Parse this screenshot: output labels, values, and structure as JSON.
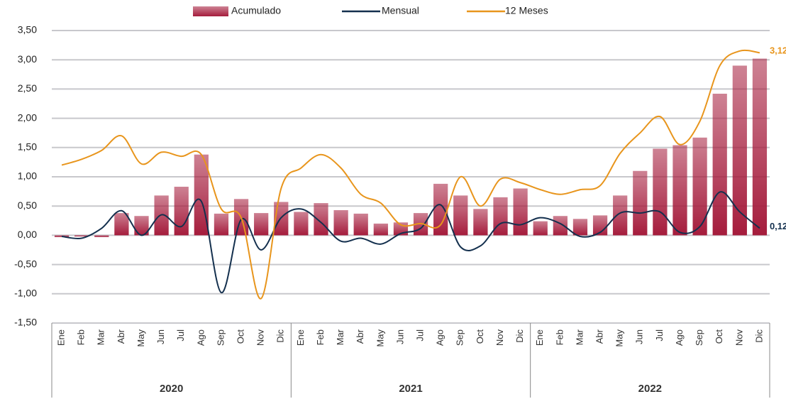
{
  "chart_data": {
    "type": "bar-line",
    "categories": [
      "Ene",
      "Feb",
      "Mar",
      "Abr",
      "May",
      "Jun",
      "Jul",
      "Ago",
      "Sep",
      "Oct",
      "Nov",
      "Dic",
      "Ene",
      "Feb",
      "Mar",
      "Abr",
      "May",
      "Jun",
      "Jul",
      "Ago",
      "Sep",
      "Oct",
      "Nov",
      "Dic",
      "Ene",
      "Feb",
      "Mar",
      "Abr",
      "May",
      "Jun",
      "Jul",
      "Ago",
      "Sep",
      "Oct",
      "Nov",
      "Dic"
    ],
    "groups": [
      {
        "label": "2020",
        "size": 12
      },
      {
        "label": "2021",
        "size": 12
      },
      {
        "label": "2022",
        "size": 12
      }
    ],
    "series": [
      {
        "name": "Acumulado",
        "type": "bar",
        "color": "#a51c3c",
        "values": [
          -0.03,
          -0.02,
          -0.03,
          0.38,
          0.33,
          0.68,
          0.83,
          1.38,
          0.37,
          0.62,
          0.38,
          0.57,
          0.4,
          0.55,
          0.43,
          0.37,
          0.2,
          0.22,
          0.38,
          0.88,
          0.68,
          0.45,
          0.65,
          0.8,
          0.24,
          0.33,
          0.28,
          0.34,
          0.68,
          1.1,
          1.48,
          1.54,
          1.67,
          2.42,
          2.9,
          3.02
        ]
      },
      {
        "name": "Mensual",
        "type": "line",
        "color": "#14304e",
        "values": [
          -0.02,
          -0.05,
          0.12,
          0.42,
          0.0,
          0.35,
          0.15,
          0.58,
          -0.98,
          0.27,
          -0.25,
          0.3,
          0.45,
          0.22,
          -0.1,
          -0.05,
          -0.15,
          0.03,
          0.12,
          0.52,
          -0.2,
          -0.18,
          0.2,
          0.18,
          0.3,
          0.2,
          -0.02,
          0.05,
          0.38,
          0.38,
          0.4,
          0.05,
          0.15,
          0.74,
          0.4,
          0.12
        ],
        "value_labels": [
          null,
          null,
          null,
          null,
          null,
          null,
          null,
          null,
          null,
          null,
          null,
          null,
          null,
          null,
          null,
          null,
          null,
          null,
          null,
          null,
          null,
          null,
          null,
          null,
          null,
          null,
          null,
          null,
          null,
          null,
          null,
          null,
          null,
          null,
          null,
          "0,12"
        ]
      },
      {
        "name": "12 Meses",
        "type": "line",
        "color": "#e8951c",
        "values": [
          1.2,
          1.3,
          1.45,
          1.7,
          1.22,
          1.42,
          1.35,
          1.38,
          0.45,
          0.3,
          -1.08,
          0.8,
          1.15,
          1.38,
          1.15,
          0.7,
          0.55,
          0.18,
          0.2,
          0.18,
          1.0,
          0.5,
          0.96,
          0.9,
          0.78,
          0.7,
          0.78,
          0.85,
          1.4,
          1.75,
          2.03,
          1.55,
          1.95,
          2.9,
          3.15,
          3.12
        ],
        "value_labels": [
          null,
          null,
          null,
          null,
          null,
          null,
          null,
          null,
          null,
          null,
          null,
          null,
          null,
          null,
          null,
          null,
          null,
          null,
          null,
          null,
          null,
          null,
          null,
          null,
          null,
          null,
          null,
          null,
          null,
          null,
          null,
          null,
          null,
          null,
          null,
          "3,12"
        ]
      }
    ],
    "ylim": [
      -1.5,
      3.5
    ],
    "yticks": [
      {
        "value": 3.5,
        "label": "3,50"
      },
      {
        "value": 3,
        "label": "3,00"
      },
      {
        "value": 2.5,
        "label": "2,50"
      },
      {
        "value": 2,
        "label": "2,00"
      },
      {
        "value": 1.5,
        "label": "1,50"
      },
      {
        "value": 1,
        "label": "1,00"
      },
      {
        "value": 0.5,
        "label": "0,50"
      },
      {
        "value": 0,
        "label": "0,00"
      },
      {
        "value": -0.5,
        "label": "-0,50"
      },
      {
        "value": -1,
        "label": "-1,00"
      },
      {
        "value": -1.5,
        "label": "-1,50"
      }
    ],
    "grid": true,
    "legend": "top"
  }
}
